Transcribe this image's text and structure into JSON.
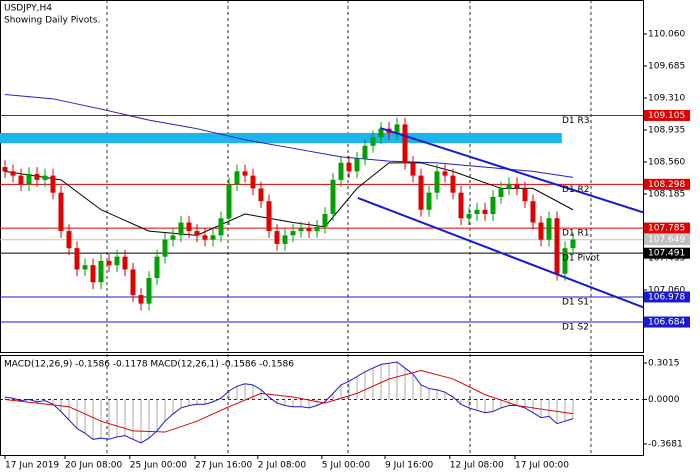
{
  "chart_data": [
    {
      "type": "candlestick",
      "title": "USDJPY,H4",
      "subtitle": "Showing Daily Pivots.",
      "xlim": [
        -0.625,
        79.75
      ],
      "xticks": [
        {
          "value": 0,
          "label": "17 Jun 2019"
        },
        {
          "value": 7.5,
          "label": "20 Jun 08:00"
        },
        {
          "value": 15.6,
          "label": "25 Jun 00:00"
        },
        {
          "value": 23.75,
          "label": "27 Jun 16:00"
        },
        {
          "value": 31.6,
          "label": "2 Jul 08:00"
        },
        {
          "value": 39.6,
          "label": "5 Jul 00:00"
        },
        {
          "value": 47.5,
          "label": "9 Jul 16:00"
        },
        {
          "value": 55.6,
          "label": "12 Jul 08:00"
        },
        {
          "value": 63.75,
          "label": "17 Jul 00:00"
        }
      ],
      "ylim": [
        106.333,
        110.458
      ],
      "yticks": [
        {
          "value": 110.06,
          "label": "110.060"
        },
        109.685,
        {
          "value": 109.31,
          "label": "109.310"
        },
        108.935,
        {
          "value": 108.56,
          "label": "108.560"
        },
        108.185,
        107.435,
        {
          "value": 107.06,
          "label": "107.060"
        }
      ],
      "up_color": "#00a000",
      "down_color": "#e00000",
      "open": [
        108.5,
        108.45,
        108.4,
        108.3,
        108.42,
        108.35,
        108.4,
        108.2,
        107.75,
        107.55,
        107.3,
        107.35,
        107.15,
        107.4,
        107.35,
        107.45,
        107.3,
        107.0,
        106.9,
        107.2,
        107.45,
        107.65,
        107.7,
        107.85,
        107.75,
        107.7,
        107.65,
        107.7,
        107.9,
        108.3,
        108.45,
        108.4,
        108.25,
        108.1,
        107.75,
        107.6,
        107.7,
        107.75,
        107.78,
        107.75,
        107.8,
        107.95,
        108.35,
        108.55,
        108.45,
        108.6,
        108.75,
        108.85,
        108.95,
        108.9,
        109.0,
        108.55,
        108.4,
        108.0,
        108.2,
        108.45,
        108.4,
        108.2,
        107.9,
        107.95,
        108.0,
        107.95,
        108.15,
        108.25,
        108.3,
        108.25,
        108.1,
        107.85,
        107.65,
        107.9,
        107.25,
        107.55
      ],
      "high": [
        108.58,
        108.53,
        108.48,
        108.5,
        108.5,
        108.48,
        108.48,
        108.28,
        107.83,
        107.63,
        107.43,
        107.43,
        107.48,
        107.48,
        107.53,
        107.53,
        107.38,
        107.08,
        107.28,
        107.53,
        107.73,
        107.78,
        107.93,
        107.93,
        107.83,
        107.78,
        107.78,
        107.98,
        108.38,
        108.53,
        108.53,
        108.48,
        108.33,
        108.18,
        107.83,
        107.78,
        107.83,
        107.86,
        107.86,
        107.88,
        108.03,
        108.43,
        108.63,
        108.63,
        108.68,
        108.83,
        108.93,
        109.03,
        109.03,
        109.08,
        109.08,
        108.63,
        108.48,
        108.28,
        108.53,
        108.53,
        108.48,
        108.28,
        108.03,
        108.08,
        108.08,
        108.23,
        108.33,
        108.38,
        108.38,
        108.33,
        108.18,
        107.93,
        107.98,
        107.98,
        107.63,
        107.73
      ],
      "low": [
        108.37,
        108.32,
        108.22,
        108.22,
        108.27,
        108.27,
        108.12,
        107.67,
        107.47,
        107.22,
        107.22,
        107.07,
        107.07,
        107.27,
        107.27,
        107.22,
        106.92,
        106.82,
        106.82,
        107.12,
        107.37,
        107.57,
        107.62,
        107.67,
        107.62,
        107.57,
        107.57,
        107.62,
        107.82,
        108.22,
        108.32,
        108.17,
        108.02,
        107.67,
        107.52,
        107.52,
        107.62,
        107.67,
        107.67,
        107.67,
        107.72,
        107.87,
        108.27,
        108.37,
        108.37,
        108.52,
        108.67,
        108.77,
        108.82,
        108.82,
        108.47,
        108.32,
        107.92,
        107.92,
        108.12,
        108.32,
        108.12,
        107.82,
        107.82,
        107.87,
        107.87,
        107.87,
        108.07,
        108.17,
        108.17,
        108.02,
        107.77,
        107.57,
        107.57,
        107.17,
        107.17,
        107.47
      ],
      "close": [
        108.45,
        108.4,
        108.3,
        108.42,
        108.35,
        108.4,
        108.2,
        107.75,
        107.55,
        107.3,
        107.35,
        107.15,
        107.4,
        107.35,
        107.45,
        107.3,
        107.0,
        106.9,
        107.2,
        107.45,
        107.65,
        107.7,
        107.85,
        107.75,
        107.7,
        107.65,
        107.7,
        107.9,
        108.3,
        108.45,
        108.4,
        108.25,
        108.1,
        107.75,
        107.6,
        107.7,
        107.75,
        107.78,
        107.75,
        107.8,
        107.95,
        108.35,
        108.55,
        108.45,
        108.6,
        108.75,
        108.85,
        108.95,
        108.9,
        109.0,
        108.55,
        108.4,
        108.0,
        108.2,
        108.45,
        108.4,
        108.2,
        107.9,
        107.95,
        108.0,
        107.95,
        108.15,
        108.25,
        108.3,
        108.25,
        108.1,
        107.85,
        107.65,
        107.9,
        107.25,
        107.55,
        107.65
      ],
      "series": [
        {
          "color": "#2020c0",
          "x": [
            0,
            6,
            12,
            18,
            24,
            30,
            36,
            42,
            48,
            54,
            60,
            66,
            71
          ],
          "values": [
            109.35,
            109.3,
            109.18,
            109.05,
            108.95,
            108.82,
            108.72,
            108.62,
            108.57,
            108.55,
            108.5,
            108.45,
            108.38
          ]
        },
        {
          "color": "#000000",
          "x": [
            0,
            7,
            12,
            18,
            24,
            30,
            36,
            40,
            44,
            48,
            52,
            56,
            62,
            66,
            71
          ],
          "values": [
            108.45,
            108.35,
            108.0,
            107.75,
            107.7,
            107.95,
            107.85,
            107.8,
            108.25,
            108.55,
            108.55,
            108.45,
            108.25,
            108.25,
            108.0
          ]
        }
      ],
      "zones": [
        {
          "color": "#1eb4ec",
          "x": [
            -0.625,
            69.6
          ],
          "values": [
            108.9,
            108.78
          ]
        }
      ],
      "trendlines": [
        {
          "color": "#1a1ad0",
          "x": [
            46.9,
            80
          ],
          "values": [
            108.958,
            107.962
          ]
        },
        {
          "color": "#1a1ad0",
          "x": [
            44.1,
            80
          ],
          "values": [
            108.138,
            106.849
          ]
        }
      ],
      "pivots": [
        {
          "name": "D1 R3",
          "value": 109.105,
          "color": "#e00000"
        },
        {
          "name": "D1 R2",
          "value": 108.298,
          "color": "#e00000"
        },
        {
          "name": "D1 R1",
          "value": 107.785,
          "color": "#e00000"
        },
        {
          "name": "D1 Pivot",
          "value": 107.491,
          "color": "#000000"
        },
        {
          "name": "D1 S1",
          "value": 106.978,
          "color": "#1a1ad0"
        },
        {
          "name": "D1 S2",
          "value": 106.684,
          "color": "#1a1ad0"
        }
      ],
      "price_line": {
        "value": 107.649,
        "color": "#c0c0c0"
      }
    },
    {
      "type": "macd",
      "title": "MACD(12,26,9) -0.1586 -0.1178 MACD(12,26,1) -0.1586 -0.1586",
      "ylim": [
        -0.46,
        0.368
      ],
      "yticks": [
        0.3015,
        {
          "value": 0,
          "label": "0.0000"
        },
        -0.3681
      ],
      "bar_color": "#a8a8a8",
      "line_color": "#1a1ad0",
      "values": [
        0.02,
        0.01,
        -0.01,
        0.0,
        -0.02,
        -0.01,
        -0.04,
        -0.1,
        -0.17,
        -0.24,
        -0.28,
        -0.33,
        -0.32,
        -0.33,
        -0.31,
        -0.3,
        -0.33,
        -0.36,
        -0.32,
        -0.26,
        -0.18,
        -0.12,
        -0.07,
        -0.05,
        -0.04,
        -0.04,
        -0.02,
        0.01,
        0.07,
        0.11,
        0.13,
        0.12,
        0.08,
        0.02,
        -0.03,
        -0.05,
        -0.06,
        -0.06,
        -0.07,
        -0.05,
        -0.02,
        0.05,
        0.12,
        0.15,
        0.19,
        0.23,
        0.26,
        0.29,
        0.3,
        0.31,
        0.26,
        0.21,
        0.12,
        0.09,
        0.08,
        0.06,
        0.02,
        -0.04,
        -0.07,
        -0.09,
        -0.11,
        -0.1,
        -0.07,
        -0.05,
        -0.05,
        -0.07,
        -0.11,
        -0.15,
        -0.14,
        -0.2,
        -0.18,
        -0.1586
      ],
      "signal": {
        "color": "#e00000",
        "x": [
          0,
          8,
          12,
          16,
          20,
          24,
          28,
          32,
          36,
          40,
          44,
          48,
          52,
          56,
          60,
          64,
          68,
          71
        ],
        "values": [
          0.0,
          -0.06,
          -0.18,
          -0.26,
          -0.27,
          -0.18,
          -0.06,
          0.05,
          0.02,
          -0.03,
          0.05,
          0.17,
          0.24,
          0.17,
          0.04,
          -0.05,
          -0.09,
          -0.1178
        ]
      }
    }
  ]
}
